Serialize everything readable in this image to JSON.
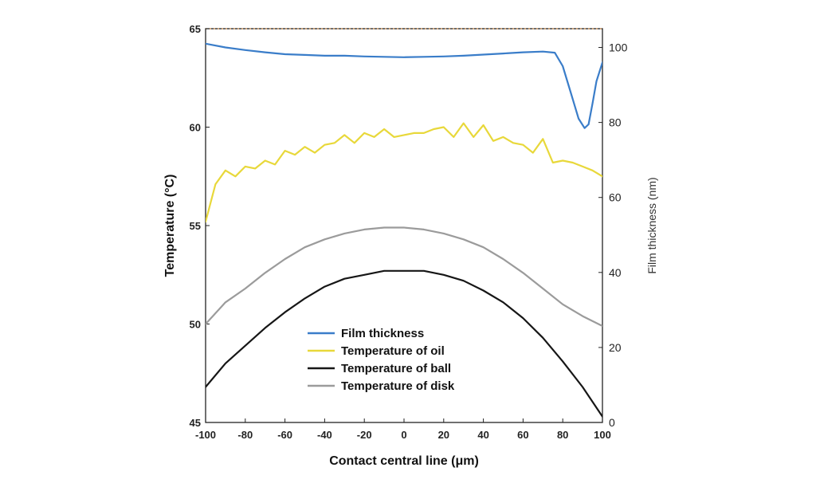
{
  "chart_data": {
    "type": "line",
    "title": "",
    "xlabel": "Contact central line (μm)",
    "ylabel": "Temperature (°C)",
    "y2label": "Film thickness (nm)",
    "xlim": [
      -100,
      100
    ],
    "ylim": [
      45,
      65
    ],
    "y2lim": [
      0,
      105
    ],
    "xticks": [
      "-100",
      "-80",
      "-60",
      "-40",
      "-20",
      "0",
      "20",
      "40",
      "60",
      "80",
      "100"
    ],
    "yticks": [
      "45",
      "50",
      "55",
      "60",
      "65"
    ],
    "y2ticks": [
      "0",
      "20",
      "40",
      "60",
      "80",
      "100"
    ],
    "grid": false,
    "legend_position": "bottom-center",
    "series": [
      {
        "name": "Film thickness",
        "color": "#3a7dc9",
        "axis": "right",
        "x": [
          -100,
          -90,
          -80,
          -70,
          -60,
          -50,
          -40,
          -30,
          -20,
          -10,
          0,
          10,
          20,
          30,
          40,
          50,
          60,
          70,
          76,
          80,
          84,
          88,
          91,
          93,
          95,
          97,
          100
        ],
        "values": [
          101,
          100,
          99.3,
          98.7,
          98.2,
          98,
          97.8,
          97.8,
          97.6,
          97.5,
          97.4,
          97.5,
          97.6,
          97.8,
          98.1,
          98.4,
          98.7,
          98.9,
          98.6,
          95,
          88,
          81,
          78.5,
          79.5,
          85,
          91,
          96
        ]
      },
      {
        "name": "Temperature of oil",
        "color": "#e8d83a",
        "axis": "left",
        "x": [
          -100,
          -95,
          -90,
          -85,
          -80,
          -75,
          -70,
          -65,
          -60,
          -55,
          -50,
          -45,
          -40,
          -35,
          -30,
          -25,
          -20,
          -15,
          -10,
          -5,
          0,
          5,
          10,
          15,
          20,
          25,
          30,
          35,
          40,
          45,
          50,
          55,
          60,
          65,
          70,
          75,
          80,
          85,
          90,
          95,
          100
        ],
        "values": [
          55.2,
          57.1,
          57.8,
          57.5,
          58.0,
          57.9,
          58.3,
          58.1,
          58.8,
          58.6,
          59.0,
          58.7,
          59.1,
          59.2,
          59.6,
          59.2,
          59.7,
          59.5,
          59.9,
          59.5,
          59.6,
          59.7,
          59.7,
          59.9,
          60.0,
          59.5,
          60.2,
          59.5,
          60.1,
          59.3,
          59.5,
          59.2,
          59.1,
          58.7,
          59.4,
          58.2,
          58.3,
          58.2,
          58.0,
          57.8,
          57.5
        ]
      },
      {
        "name": "Temperature of ball",
        "color": "#161616",
        "axis": "left",
        "x": [
          -100,
          -90,
          -80,
          -70,
          -60,
          -50,
          -40,
          -30,
          -20,
          -10,
          0,
          10,
          20,
          30,
          40,
          50,
          60,
          70,
          80,
          90,
          100
        ],
        "values": [
          46.8,
          48.0,
          48.9,
          49.8,
          50.6,
          51.3,
          51.9,
          52.3,
          52.5,
          52.7,
          52.7,
          52.7,
          52.5,
          52.2,
          51.7,
          51.1,
          50.3,
          49.3,
          48.1,
          46.8,
          45.3
        ]
      },
      {
        "name": "Temperature of disk",
        "color": "#9b9b9b",
        "axis": "left",
        "x": [
          -100,
          -90,
          -80,
          -70,
          -60,
          -50,
          -40,
          -30,
          -20,
          -10,
          0,
          10,
          20,
          30,
          40,
          50,
          60,
          70,
          80,
          90,
          100
        ],
        "values": [
          50.0,
          51.1,
          51.8,
          52.6,
          53.3,
          53.9,
          54.3,
          54.6,
          54.8,
          54.9,
          54.9,
          54.8,
          54.6,
          54.3,
          53.9,
          53.3,
          52.6,
          51.8,
          51.0,
          50.4,
          49.9
        ]
      }
    ]
  }
}
